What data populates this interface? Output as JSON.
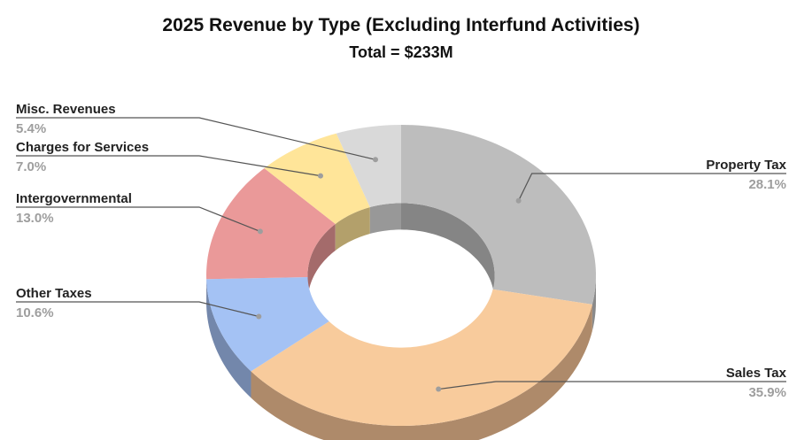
{
  "chart_data": {
    "type": "pie",
    "style": "3d-donut",
    "title": "2025 Revenue by Type (Excluding Interfund Activities)",
    "subtitle": "Total = $233M",
    "slices": [
      {
        "label": "Property Tax",
        "percent_label": "28.1%",
        "value": 28.1,
        "color": "#bdbdbd",
        "side_color": "#8a8a8a",
        "inner_color": "#858585"
      },
      {
        "label": "Sales Tax",
        "percent_label": "35.9%",
        "value": 35.9,
        "color": "#f8cb9c",
        "side_color": "#ae8a6a",
        "inner_color": "#ae8a6a"
      },
      {
        "label": "Other Taxes",
        "percent_label": "10.6%",
        "value": 10.6,
        "color": "#a4c2f4",
        "side_color": "#7387ab",
        "inner_color": "#7387ab"
      },
      {
        "label": "Intergovernmental",
        "percent_label": "13.0%",
        "value": 13.0,
        "color": "#ea9999",
        "side_color": "#a46b6b",
        "inner_color": "#a46b6b"
      },
      {
        "label": "Charges for Services",
        "percent_label": "7.0%",
        "value": 7.0,
        "color": "#ffe599",
        "side_color": "#b3a06b",
        "inner_color": "#b3a06b"
      },
      {
        "label": "Misc. Revenues",
        "percent_label": "5.4%",
        "value": 5.4,
        "color": "#d9d9d9",
        "side_color": "#989898",
        "inner_color": "#989898"
      }
    ],
    "legend": "none",
    "labels": "outside-with-leader-lines"
  }
}
